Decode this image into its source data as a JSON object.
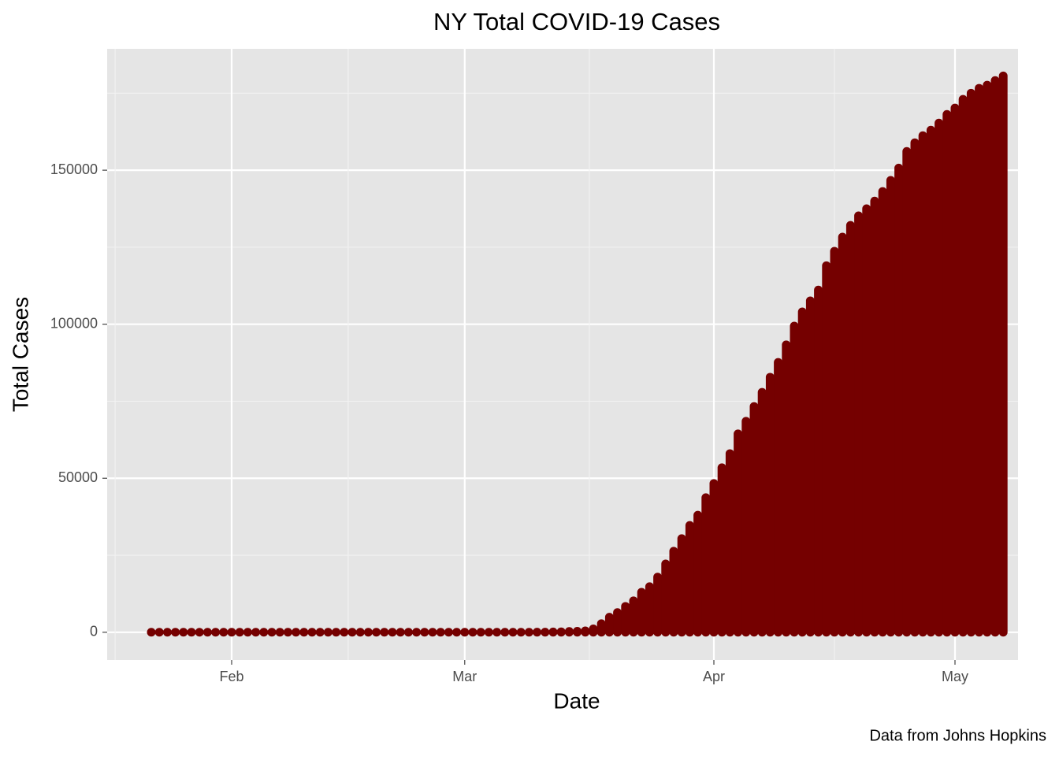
{
  "chart_data": {
    "type": "bar",
    "title": "NY Total COVID-19 Cases",
    "x_label": "Date",
    "y_label": "Total Cases",
    "caption": "Data from Johns Hopkins",
    "categories": [
      null,
      null,
      null,
      null,
      null,
      null,
      null,
      null,
      null,
      null,
      "Feb",
      null,
      null,
      null,
      null,
      null,
      null,
      null,
      null,
      null,
      null,
      null,
      null,
      null,
      null,
      null,
      null,
      null,
      null,
      null,
      null,
      null,
      null,
      null,
      null,
      null,
      null,
      null,
      null,
      "Mar",
      null,
      null,
      null,
      null,
      null,
      null,
      null,
      null,
      null,
      null,
      null,
      null,
      null,
      null,
      null,
      null,
      null,
      null,
      null,
      null,
      null,
      null,
      null,
      null,
      null,
      null,
      null,
      null,
      null,
      null,
      "Apr",
      null,
      null,
      null,
      null,
      null,
      null,
      null,
      null,
      null,
      null,
      null,
      null,
      null,
      null,
      null,
      null,
      null,
      null,
      null,
      null,
      null,
      null,
      null,
      null,
      null,
      null,
      null,
      null,
      null,
      "May",
      null,
      null,
      null,
      null,
      null,
      null
    ],
    "values": [
      0,
      0,
      0,
      0,
      0,
      0,
      0,
      0,
      0,
      0,
      0,
      0,
      0,
      0,
      0,
      0,
      0,
      0,
      0,
      0,
      0,
      0,
      0,
      0,
      0,
      0,
      0,
      0,
      0,
      0,
      0,
      0,
      0,
      0,
      0,
      0,
      0,
      0,
      0,
      0,
      1,
      1,
      1,
      4,
      5,
      12,
      13,
      16,
      36,
      52,
      95,
      154,
      269,
      329,
      463,
      1100,
      2800,
      4900,
      6400,
      8400,
      10200,
      13000,
      14800,
      17900,
      22200,
      26300,
      30400,
      34700,
      38000,
      43700,
      48300,
      53400,
      58000,
      64400,
      68500,
      73300,
      77900,
      82800,
      87600,
      93300,
      99400,
      104000,
      107600,
      111100,
      119000,
      123700,
      128300,
      132100,
      135200,
      137500,
      140000,
      143100,
      146700,
      150700,
      156100,
      158900,
      161200,
      163000,
      165300,
      168100,
      170200,
      173000,
      175000,
      176600,
      177600,
      179100,
      180600
    ],
    "color": "#750000",
    "ylim": [
      -9000,
      189400
    ],
    "yticks": [
      0,
      50000,
      100000,
      150000
    ],
    "grid": true
  }
}
